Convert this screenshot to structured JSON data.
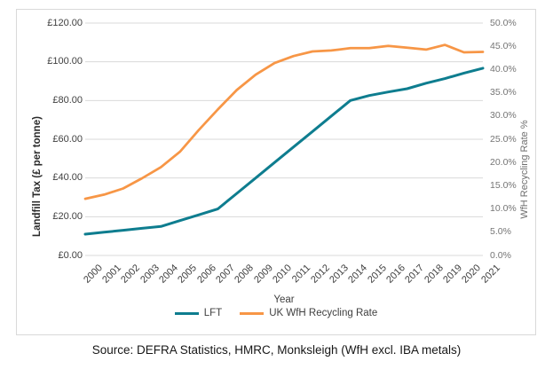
{
  "source": {
    "text": "Source: DEFRA Statistics, HMRC, Monksleigh (WfH excl. IBA metals)"
  },
  "colors": {
    "lft_line": "#0E7D8F",
    "recycling_line": "#F79646",
    "gridline": "#D9D9D9",
    "chart_border": "#D9D9D9",
    "left_tick_text": "#404040",
    "right_tick_text": "#757575"
  },
  "chart_data": {
    "type": "line",
    "title": "",
    "xlabel": "Year",
    "x_categories": [
      "2000",
      "2001",
      "2002",
      "2003",
      "2004",
      "2005",
      "2006",
      "2007",
      "2008",
      "2009",
      "2010",
      "2011",
      "2012",
      "2013",
      "2014",
      "2015",
      "2016",
      "2017",
      "2018",
      "2019",
      "2020",
      "2021"
    ],
    "series": [
      {
        "name": "LFT",
        "axis": "left",
        "color": "#0E7D8F",
        "values": [
          11,
          12,
          13,
          14,
          15,
          18,
          21,
          24,
          32,
          40,
          48,
          56,
          64,
          72,
          80,
          82.6,
          84.4,
          86.1,
          88.95,
          91.35,
          94.15,
          96.7
        ]
      },
      {
        "name": "UK WfH Recycling Rate",
        "axis": "right",
        "color": "#F79646",
        "values": [
          12.2,
          13.1,
          14.4,
          16.6,
          19.0,
          22.3,
          27.0,
          31.4,
          35.6,
          38.9,
          41.4,
          42.9,
          43.9,
          44.1,
          44.6,
          44.6,
          45.1,
          44.7,
          44.3,
          45.3,
          43.7,
          43.8
        ]
      }
    ],
    "left_axis": {
      "title": "Landfill Tax (£ per tonne)",
      "min": 0,
      "max": 120,
      "tick_step": 20,
      "tick_labels": [
        "£0.00",
        "£20.00",
        "£40.00",
        "£60.00",
        "£80.00",
        "£100.00",
        "£120.00"
      ]
    },
    "right_axis": {
      "title": "WfH Recycling Rate %",
      "min": 0,
      "max": 50,
      "tick_step": 5,
      "tick_labels": [
        "0.0%",
        "5.0%",
        "10.0%",
        "15.0%",
        "20.0%",
        "25.0%",
        "30.0%",
        "35.0%",
        "40.0%",
        "45.0%",
        "50.0%"
      ]
    },
    "grid": "horizontal",
    "legend_position": "bottom"
  }
}
